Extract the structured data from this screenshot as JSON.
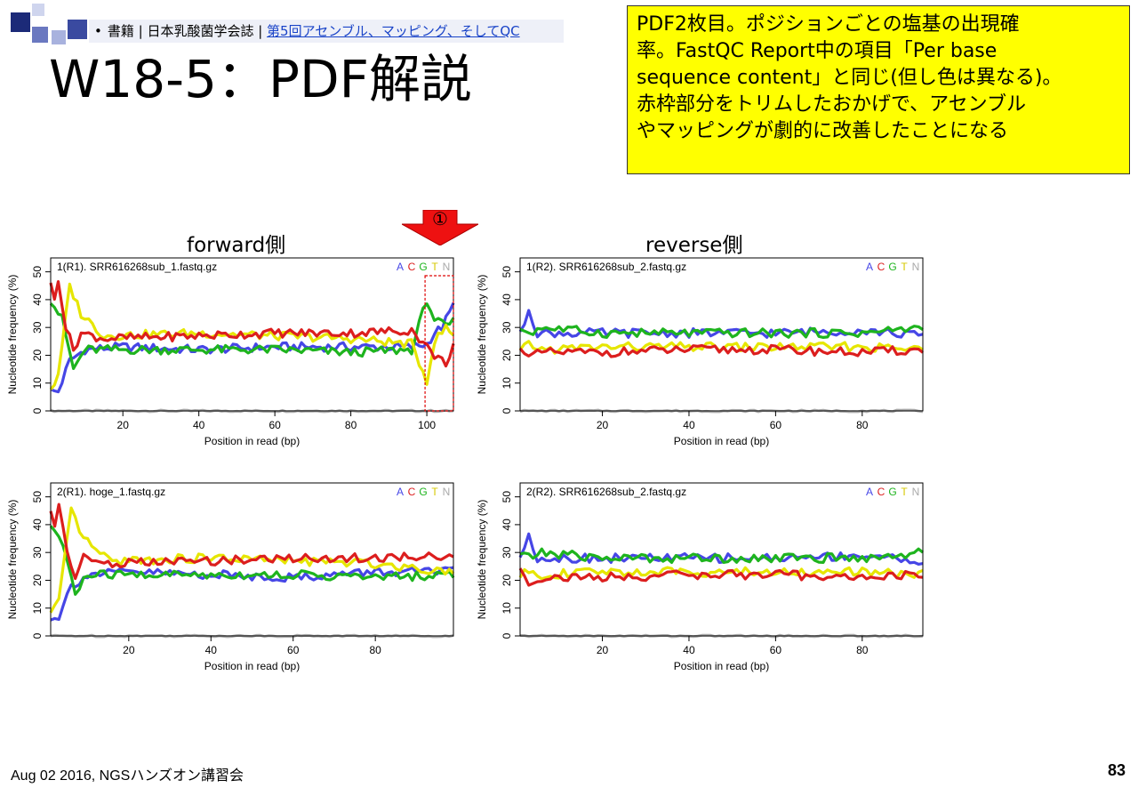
{
  "slide": {
    "breadcrumb": {
      "bullet": "•",
      "prefix": "書籍 | 日本乳酸菌学会誌 | ",
      "link": "第5回アセンブル、マッピング、そしてQC"
    },
    "title": "W18-5：PDF解説",
    "note_lines": [
      "PDF2枚目。ポジションごとの塩基の出現確",
      "率。FastQC Report中の項目「Per base",
      "sequence content」と同じ(但し色は異なる)。",
      "赤枠部分をトリムしたおかげで、アセンブル",
      "やマッピングが劇的に改善したことになる"
    ],
    "forward_label": "forward側",
    "reverse_label": "reverse側",
    "callout_number": "①",
    "footer": "Aug 02 2016, NGSハンズオン講習会",
    "page_number": "83",
    "colors": {
      "A": "#4646e6",
      "C": "#dc1e1e",
      "G": "#1eb41e",
      "T": "#e6e600",
      "N": "#aaaaaa",
      "note_bg": "#ffff00",
      "arrow": "#ee1111"
    }
  },
  "chart_data": [
    {
      "type": "line",
      "title": "1(R1). SRR616268sub_1.fastq.gz",
      "xlabel": "Position in read (bp)",
      "ylabel": "Nucleotide frequency (%)",
      "xlim": [
        1,
        107
      ],
      "ylim": [
        0,
        55
      ],
      "xticks": [
        20,
        40,
        60,
        80,
        100
      ],
      "yticks": [
        0,
        10,
        20,
        30,
        40,
        50
      ],
      "legend": [
        "A",
        "C",
        "G",
        "T",
        "N"
      ],
      "legend_position": "top-right",
      "highlight_x_range": [
        100,
        107
      ],
      "series": [
        {
          "name": "A",
          "knots": [
            [
              1,
              7
            ],
            [
              3,
              7
            ],
            [
              6,
              18
            ],
            [
              10,
              22
            ],
            [
              20,
              23
            ],
            [
              40,
              22
            ],
            [
              60,
              23
            ],
            [
              80,
              23
            ],
            [
              96,
              23
            ],
            [
              100,
              24
            ],
            [
              102,
              28
            ],
            [
              104,
              30
            ],
            [
              107,
              38
            ]
          ]
        },
        {
          "name": "C",
          "knots": [
            [
              1,
              45
            ],
            [
              2,
              40
            ],
            [
              3,
              48
            ],
            [
              5,
              30
            ],
            [
              7,
              22
            ],
            [
              9,
              28
            ],
            [
              15,
              26
            ],
            [
              40,
              27
            ],
            [
              60,
              28
            ],
            [
              80,
              28
            ],
            [
              96,
              29
            ],
            [
              100,
              23
            ],
            [
              102,
              20
            ],
            [
              105,
              17
            ],
            [
              107,
              24
            ]
          ]
        },
        {
          "name": "G",
          "knots": [
            [
              1,
              40
            ],
            [
              4,
              33
            ],
            [
              7,
              15
            ],
            [
              10,
              22
            ],
            [
              40,
              22
            ],
            [
              60,
              22
            ],
            [
              80,
              21
            ],
            [
              96,
              22
            ],
            [
              100,
              40
            ],
            [
              102,
              33
            ],
            [
              105,
              30
            ],
            [
              107,
              32
            ]
          ]
        },
        {
          "name": "T",
          "knots": [
            [
              1,
              8
            ],
            [
              3,
              12
            ],
            [
              6,
              45
            ],
            [
              9,
              35
            ],
            [
              15,
              27
            ],
            [
              40,
              28
            ],
            [
              60,
              27
            ],
            [
              80,
              26
            ],
            [
              96,
              24
            ],
            [
              100,
              11
            ],
            [
              102,
              25
            ],
            [
              105,
              30
            ],
            [
              107,
              27
            ]
          ]
        },
        {
          "name": "N",
          "knots": [
            [
              1,
              0
            ],
            [
              107,
              0
            ]
          ]
        }
      ]
    },
    {
      "type": "line",
      "title": "1(R2). SRR616268sub_2.fastq.gz",
      "xlabel": "Position in read (bp)",
      "ylabel": "Nucleotide frequency (%)",
      "xlim": [
        1,
        94
      ],
      "ylim": [
        0,
        55
      ],
      "xticks": [
        20,
        40,
        60,
        80
      ],
      "yticks": [
        0,
        10,
        20,
        30,
        40,
        50
      ],
      "legend": [
        "A",
        "C",
        "G",
        "T",
        "N"
      ],
      "legend_position": "top-right",
      "series": [
        {
          "name": "A",
          "knots": [
            [
              1,
              27
            ],
            [
              3,
              37
            ],
            [
              5,
              28
            ],
            [
              20,
              28
            ],
            [
              40,
              28
            ],
            [
              60,
              28
            ],
            [
              80,
              29
            ],
            [
              94,
              27
            ]
          ]
        },
        {
          "name": "C",
          "knots": [
            [
              1,
              24
            ],
            [
              3,
              19
            ],
            [
              6,
              21
            ],
            [
              20,
              21
            ],
            [
              40,
              22
            ],
            [
              60,
              22
            ],
            [
              80,
              21
            ],
            [
              94,
              22
            ]
          ]
        },
        {
          "name": "G",
          "knots": [
            [
              1,
              30
            ],
            [
              3,
              28
            ],
            [
              6,
              30
            ],
            [
              20,
              28
            ],
            [
              40,
              28
            ],
            [
              60,
              28
            ],
            [
              80,
              28
            ],
            [
              94,
              30
            ]
          ]
        },
        {
          "name": "T",
          "knots": [
            [
              1,
              21
            ],
            [
              3,
              24
            ],
            [
              6,
              22
            ],
            [
              20,
              23
            ],
            [
              40,
              23
            ],
            [
              60,
              23
            ],
            [
              80,
              23
            ],
            [
              94,
              22
            ]
          ]
        },
        {
          "name": "N",
          "knots": [
            [
              1,
              0
            ],
            [
              94,
              0
            ]
          ]
        }
      ]
    },
    {
      "type": "line",
      "title": "2(R1). hoge_1.fastq.gz",
      "xlabel": "Position in read (bp)",
      "ylabel": "Nucleotide frequency (%)",
      "xlim": [
        1,
        99
      ],
      "ylim": [
        0,
        55
      ],
      "xticks": [
        20,
        40,
        60,
        80
      ],
      "yticks": [
        0,
        10,
        20,
        30,
        40,
        50
      ],
      "legend": [
        "A",
        "C",
        "G",
        "T",
        "N"
      ],
      "legend_position": "top-right",
      "series": [
        {
          "name": "A",
          "knots": [
            [
              1,
              7
            ],
            [
              3,
              7
            ],
            [
              6,
              18
            ],
            [
              10,
              22
            ],
            [
              20,
              23
            ],
            [
              40,
              22
            ],
            [
              60,
              21
            ],
            [
              80,
              23
            ],
            [
              99,
              23
            ]
          ]
        },
        {
          "name": "C",
          "knots": [
            [
              1,
              45
            ],
            [
              2,
              40
            ],
            [
              3,
              48
            ],
            [
              5,
              30
            ],
            [
              7,
              22
            ],
            [
              9,
              28
            ],
            [
              15,
              26
            ],
            [
              40,
              27
            ],
            [
              60,
              28
            ],
            [
              80,
              28
            ],
            [
              99,
              29
            ]
          ]
        },
        {
          "name": "G",
          "knots": [
            [
              1,
              40
            ],
            [
              4,
              33
            ],
            [
              7,
              15
            ],
            [
              10,
              22
            ],
            [
              40,
              22
            ],
            [
              60,
              22
            ],
            [
              80,
              21
            ],
            [
              99,
              22
            ]
          ]
        },
        {
          "name": "T",
          "knots": [
            [
              1,
              8
            ],
            [
              3,
              12
            ],
            [
              6,
              45
            ],
            [
              9,
              35
            ],
            [
              15,
              27
            ],
            [
              40,
              28
            ],
            [
              60,
              27
            ],
            [
              80,
              26
            ],
            [
              99,
              23
            ]
          ]
        },
        {
          "name": "N",
          "knots": [
            [
              1,
              0
            ],
            [
              99,
              0
            ]
          ]
        }
      ]
    },
    {
      "type": "line",
      "title": "2(R2). SRR616268sub_2.fastq.gz",
      "xlabel": "Position in read (bp)",
      "ylabel": "Nucleotide frequency (%)",
      "xlim": [
        1,
        94
      ],
      "ylim": [
        0,
        55
      ],
      "xticks": [
        20,
        40,
        60,
        80
      ],
      "yticks": [
        0,
        10,
        20,
        30,
        40,
        50
      ],
      "legend": [
        "A",
        "C",
        "G",
        "T",
        "N"
      ],
      "legend_position": "top-right",
      "series": [
        {
          "name": "A",
          "knots": [
            [
              1,
              27
            ],
            [
              3,
              37
            ],
            [
              5,
              28
            ],
            [
              20,
              28
            ],
            [
              40,
              28
            ],
            [
              60,
              28
            ],
            [
              80,
              29
            ],
            [
              94,
              27
            ]
          ]
        },
        {
          "name": "C",
          "knots": [
            [
              1,
              24
            ],
            [
              3,
              19
            ],
            [
              6,
              21
            ],
            [
              20,
              21
            ],
            [
              40,
              22
            ],
            [
              60,
              22
            ],
            [
              80,
              21
            ],
            [
              94,
              22
            ]
          ]
        },
        {
          "name": "G",
          "knots": [
            [
              1,
              30
            ],
            [
              3,
              28
            ],
            [
              6,
              30
            ],
            [
              20,
              28
            ],
            [
              40,
              28
            ],
            [
              60,
              28
            ],
            [
              80,
              28
            ],
            [
              94,
              30
            ]
          ]
        },
        {
          "name": "T",
          "knots": [
            [
              1,
              21
            ],
            [
              3,
              24
            ],
            [
              6,
              22
            ],
            [
              20,
              23
            ],
            [
              40,
              23
            ],
            [
              60,
              23
            ],
            [
              80,
              23
            ],
            [
              94,
              22
            ]
          ]
        },
        {
          "name": "N",
          "knots": [
            [
              1,
              0
            ],
            [
              94,
              0
            ]
          ]
        }
      ]
    }
  ]
}
